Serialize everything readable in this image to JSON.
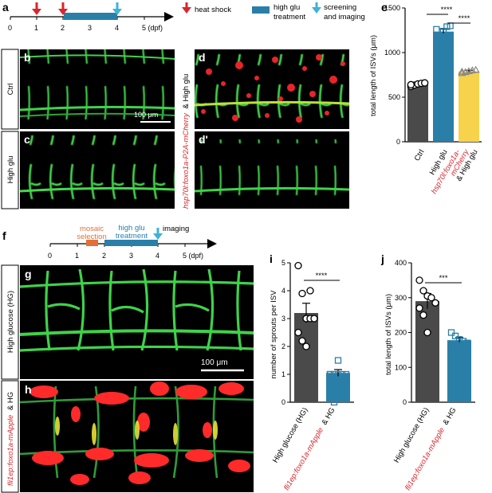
{
  "panel_a": {
    "letter": "a",
    "timeline_ticks": [
      "0",
      "1",
      "2",
      "3",
      "4",
      "5 (dpf)"
    ],
    "legend": {
      "heat_shock": "heat shock",
      "high_glu_l1": "high glu",
      "high_glu_l2": "treatment",
      "screen_l1": "screening",
      "screen_l2": "and imaging"
    }
  },
  "panels_bd": {
    "b_letter": "b",
    "c_letter": "c",
    "d_letter": "d",
    "d2_letter": "d'",
    "ctrl_label": "Ctrl",
    "highglu_label": "High glu",
    "transgene_label": "hsp70l:foxo1a-P2A-mCherry",
    "transgene_suffix": "& High glu",
    "scalebar": "100 μm"
  },
  "panel_e": {
    "letter": "e",
    "sig1": "****",
    "sig2": "****",
    "cat1": "Ctrl",
    "cat2": "High glu",
    "cat3_l1": "hsp70l:foxo1a-",
    "cat3_l2": "mCherry",
    "cat3_l3": "& High glu"
  },
  "panel_f": {
    "letter": "f",
    "timeline_ticks": [
      "0",
      "1",
      "2",
      "3",
      "4",
      "5 (dpf)"
    ],
    "mosaic_l1": "mosaic",
    "mosaic_l2": "selection",
    "highglu_l1": "high glu",
    "highglu_l2": "treatment",
    "imaging": "imaging",
    "colors": {
      "mosaic": "#e2703a",
      "treatment": "#2a7fa8",
      "arrow": "#3fb2d8"
    }
  },
  "panels_gh": {
    "g_letter": "g",
    "h_letter": "h",
    "g_side": "High glucose (HG)",
    "h_side": "fli1ep:foxo1a-mApple",
    "h_side_suffix": "& HG",
    "scalebar": "100 μm"
  },
  "panel_i": {
    "letter": "i",
    "sig": "****",
    "cat1": "High glucose (HG)",
    "cat2": "fli1ep:foxo1a-mApple",
    "cat2_suffix": "& HG"
  },
  "panel_j": {
    "letter": "j",
    "sig": "***",
    "cat1": "High glucose (HG)",
    "cat2": "fli1ep:foxo1a-mApple",
    "cat2_suffix": "& HG"
  },
  "chart_data": [
    {
      "panel": "e",
      "type": "bar",
      "ylabel": "total length of ISVs (μm)",
      "ylim": [
        0,
        1500
      ],
      "yticks": [
        0,
        500,
        1000,
        1500
      ],
      "categories": [
        "Ctrl",
        "High glu",
        "hsp70l:foxo1a-mCherry & High glu"
      ],
      "values": [
        645,
        1235,
        790
      ],
      "errors": [
        15,
        30,
        12
      ],
      "colors": [
        "#4a4a4a",
        "#2a7fa8",
        "#f7d34c"
      ],
      "points": [
        [
          620,
          635,
          648,
          655,
          660,
          640
        ],
        [
          1130,
          1180,
          1240,
          1290,
          1300,
          1260
        ],
        [
          770,
          780,
          790,
          800,
          805,
          785
        ]
      ],
      "comparisons": [
        [
          0,
          1,
          "****"
        ],
        [
          1,
          2,
          "****"
        ]
      ]
    },
    {
      "panel": "i",
      "type": "bar",
      "ylabel": "number of sprouts per ISV",
      "ylim": [
        0,
        5
      ],
      "yticks": [
        0,
        1,
        2,
        3,
        4,
        5
      ],
      "categories": [
        "High glucose (HG)",
        "fli1ep:foxo1a-mApple & HG"
      ],
      "values": [
        3.2,
        1.05
      ],
      "errors": [
        0.35,
        0.12
      ],
      "colors": [
        "#4a4a4a",
        "#2a7fa8"
      ],
      "points": [
        [
          4.9,
          3.9,
          3.0,
          3.0,
          3.0,
          2.5,
          2.2,
          2.0,
          4.0
        ],
        [
          1.0,
          1.0,
          1.0,
          1.0,
          1.0,
          1.0,
          0.0,
          1.5
        ]
      ],
      "comparisons": [
        [
          0,
          1,
          "****"
        ]
      ]
    },
    {
      "panel": "j",
      "type": "bar",
      "ylabel": "total length of ISVs (μm)",
      "ylim": [
        0,
        400
      ],
      "yticks": [
        0,
        100,
        200,
        300,
        400
      ],
      "categories": [
        "High glucose (HG)",
        "fli1ep:foxo1a-mApple & HG"
      ],
      "values": [
        290,
        178
      ],
      "errors": [
        22,
        8
      ],
      "colors": [
        "#4a4a4a",
        "#2a7fa8"
      ],
      "points": [
        [
          350,
          320,
          305,
          300,
          285,
          270,
          250,
          200
        ],
        [
          200,
          190,
          180,
          175,
          170,
          165,
          160
        ]
      ],
      "comparisons": [
        [
          0,
          1,
          "***"
        ]
      ]
    }
  ]
}
